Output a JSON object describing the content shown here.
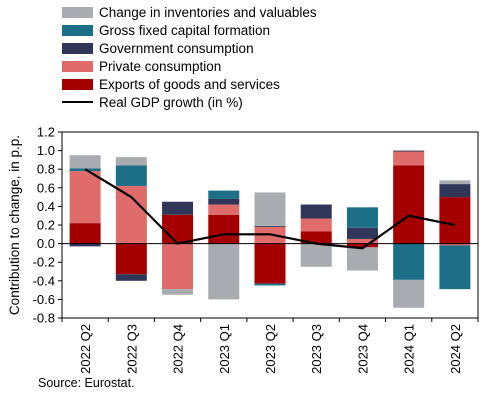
{
  "chart_data": {
    "type": "bar",
    "stacked": true,
    "categories": [
      "2022 Q2",
      "2022 Q3",
      "2022 Q4",
      "2023 Q1",
      "2023 Q2",
      "2023 Q3",
      "2023 Q4",
      "2024 Q1",
      "2024 Q2"
    ],
    "ylabel": "Contribution to change, in p.p.",
    "ylim": [
      -0.8,
      1.2
    ],
    "yticks": [
      "-0.8",
      "-0.6",
      "-0.4",
      "-0.2",
      "0.0",
      "0.2",
      "0.4",
      "0.6",
      "0.8",
      "1.0",
      "1.2"
    ],
    "grid": false,
    "legend_position": "top",
    "series": [
      {
        "name": "Exports of goods and services",
        "color": "#a40000",
        "values": [
          0.22,
          -0.33,
          0.31,
          0.31,
          -0.43,
          0.13,
          -0.04,
          0.84,
          0.5
        ]
      },
      {
        "name": "Private consumption",
        "color": "#df6b6b",
        "values": [
          0.56,
          0.62,
          -0.49,
          0.11,
          0.18,
          0.14,
          0.05,
          0.15,
          -0.02
        ]
      },
      {
        "name": "Government consumption",
        "color": "#2f3658",
        "values": [
          -0.03,
          -0.07,
          0.14,
          0.06,
          0.01,
          0.15,
          0.12,
          0.01,
          0.14
        ]
      },
      {
        "name": "Gross fixed capital formation",
        "color": "#1d6f87",
        "values": [
          0.03,
          0.22,
          0.0,
          0.09,
          -0.02,
          0.0,
          0.22,
          -0.39,
          -0.47
        ]
      },
      {
        "name": "Change in inventories and valuables",
        "color": "#a8acb1",
        "values": [
          0.14,
          0.09,
          -0.06,
          -0.6,
          0.36,
          -0.25,
          -0.25,
          -0.3,
          0.04
        ]
      }
    ],
    "line": {
      "name": "Real GDP growth (in %)",
      "color": "#000000",
      "values": [
        0.8,
        0.5,
        0.0,
        0.1,
        0.1,
        0.0,
        -0.05,
        0.3,
        0.2
      ]
    }
  },
  "legend": [
    {
      "label": "Change in inventories and valuables",
      "color": "#a8acb1",
      "kind": "bar"
    },
    {
      "label": "Gross fixed capital formation",
      "color": "#1d6f87",
      "kind": "bar"
    },
    {
      "label": "Government consumption",
      "color": "#2f3658",
      "kind": "bar"
    },
    {
      "label": "Private consumption",
      "color": "#df6b6b",
      "kind": "bar"
    },
    {
      "label": "Exports of goods and services",
      "color": "#a40000",
      "kind": "bar"
    },
    {
      "label": "Real GDP growth (in %)",
      "color": "#000000",
      "kind": "line"
    }
  ],
  "source": "Source: Eurostat."
}
